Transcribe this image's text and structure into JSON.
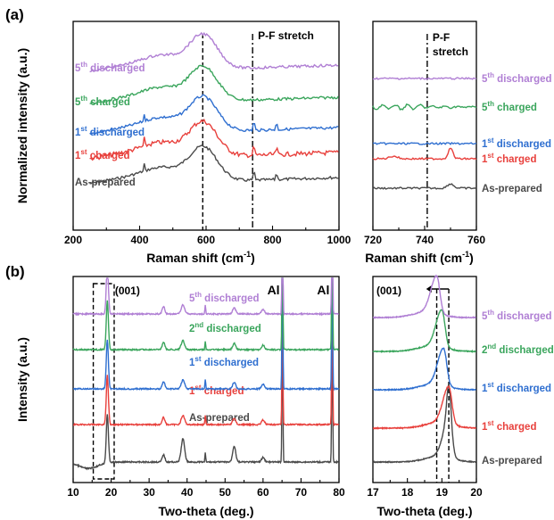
{
  "figure": {
    "label_a": "(a)",
    "label_b": "(b)"
  },
  "colors": {
    "as_prepared": "#4a4a4a",
    "charged_1": "#e8403c",
    "discharged_1": "#2f6fd0",
    "charged_5": "#3aa55c",
    "discharged_2": "#3aa55c",
    "discharged_5": "#b07fd4"
  },
  "chart_data": [
    {
      "id": "a_left",
      "type": "line",
      "xlabel": "Raman shift (cm",
      "xlabel_sup": "-1",
      "xlabel_end": ")",
      "ylabel": "Normalized intensity (a.u.)",
      "xlim": [
        200,
        1000
      ],
      "xticks": [
        "200",
        "400",
        "600",
        "800",
        "1000"
      ],
      "annotations": [
        {
          "text": "P-F stretch",
          "x": 740,
          "style": "dashdot"
        },
        {
          "text": "",
          "x": 590,
          "style": "dash"
        }
      ],
      "series": [
        {
          "name": "As-prepared",
          "key": "as_prepared"
        },
        {
          "name": "charged",
          "prefix": "1",
          "sup": "st",
          "key": "charged_1"
        },
        {
          "name": "discharged",
          "prefix": "1",
          "sup": "st",
          "key": "discharged_1"
        },
        {
          "name": "charged",
          "prefix": "5",
          "sup": "th",
          "key": "charged_5"
        },
        {
          "name": "discharged",
          "prefix": "5",
          "sup": "th",
          "key": "discharged_5"
        }
      ]
    },
    {
      "id": "a_right",
      "type": "line",
      "xlabel": "Raman shift (cm",
      "xlabel_sup": "-1",
      "xlabel_end": ")",
      "xlim": [
        720,
        760
      ],
      "xticks": [
        "720",
        "740",
        "760"
      ],
      "annotations": [
        {
          "text": "P-F",
          "text2": "stretch",
          "x": 741,
          "style": "dashdot"
        }
      ],
      "series": [
        {
          "name": "As-prepared",
          "key": "as_prepared"
        },
        {
          "name": "charged",
          "prefix": "1",
          "sup": "st",
          "key": "charged_1"
        },
        {
          "name": "discharged",
          "prefix": "1",
          "sup": "st",
          "key": "discharged_1"
        },
        {
          "name": "charged",
          "prefix": "5",
          "sup": "th",
          "key": "charged_5"
        },
        {
          "name": "discharged",
          "prefix": "5",
          "sup": "th",
          "key": "discharged_5"
        }
      ]
    },
    {
      "id": "b_left",
      "type": "line",
      "xlabel": "Two-theta (deg.)",
      "ylabel": "Intensity (a.u.)",
      "xlim": [
        10,
        80
      ],
      "xticks": [
        "10",
        "20",
        "30",
        "40",
        "50",
        "60",
        "70",
        "80"
      ],
      "annotations": [
        {
          "text": "(001)",
          "x": 18.9
        },
        {
          "text": "Al",
          "x": 65.1
        },
        {
          "text": "Al",
          "x": 78.2
        }
      ],
      "series": [
        {
          "name": "As-prepared",
          "key": "as_prepared"
        },
        {
          "name": "charged",
          "prefix": "1",
          "sup": "st",
          "key": "charged_1"
        },
        {
          "name": "discharged",
          "prefix": "1",
          "sup": "st",
          "key": "discharged_1"
        },
        {
          "name": "discharged",
          "prefix": "2",
          "sup": "nd",
          "key": "discharged_2"
        },
        {
          "name": "discharged",
          "prefix": "5",
          "sup": "th",
          "key": "discharged_5"
        }
      ]
    },
    {
      "id": "b_right",
      "type": "line",
      "xlabel": "Two-theta (deg.)",
      "xlim": [
        17,
        20
      ],
      "xticks": [
        "17",
        "18",
        "19",
        "20"
      ],
      "annotations": [
        {
          "text": "(001)",
          "x": 17.3
        }
      ],
      "series": [
        {
          "name": "As-prepared",
          "key": "as_prepared",
          "peak_x": 19.2
        },
        {
          "name": "charged",
          "prefix": "1",
          "sup": "st",
          "key": "charged_1",
          "peak_x": 19.2
        },
        {
          "name": "discharged",
          "prefix": "1",
          "sup": "st",
          "key": "discharged_1",
          "peak_x": 19.05
        },
        {
          "name": "discharged",
          "prefix": "2",
          "sup": "nd",
          "key": "discharged_2",
          "peak_x": 19.0
        },
        {
          "name": "discharged",
          "prefix": "5",
          "sup": "th",
          "key": "discharged_5",
          "peak_x": 18.85
        }
      ]
    }
  ]
}
